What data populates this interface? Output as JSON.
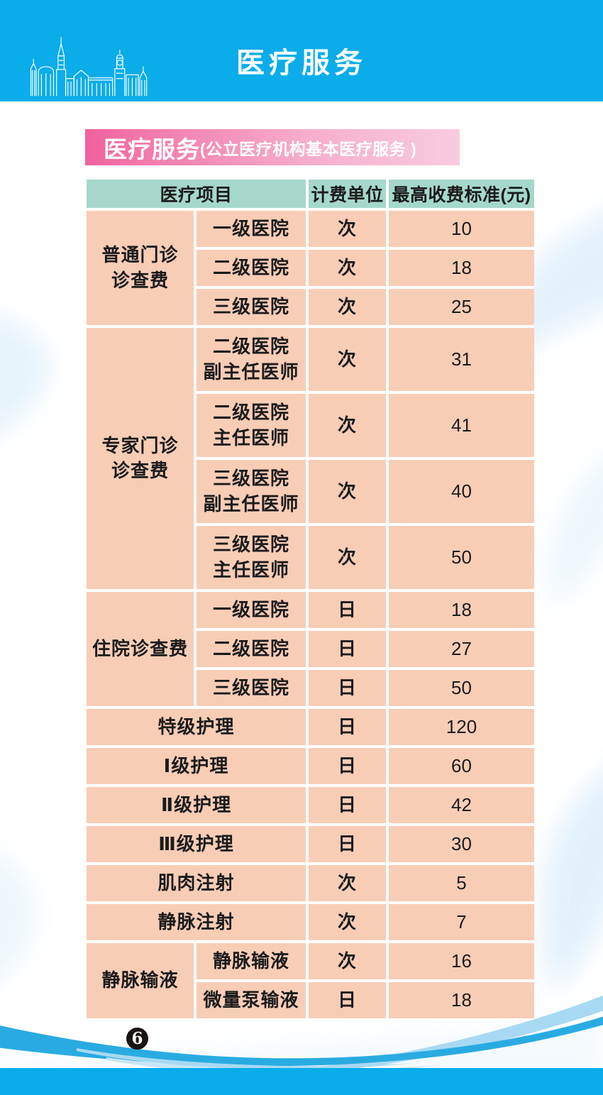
{
  "page": {
    "top_banner_title": "医疗服务",
    "page_number": "6"
  },
  "section_banner": {
    "title": "医疗服务",
    "subtitle": "(公立医疗机构基本医疗服务 )"
  },
  "colors": {
    "top_bar": "#0AACE9",
    "table_header_bg": "#A5D8CA",
    "table_cell_bg": "#F8CDB6",
    "banner_pink_start": "#F0619D",
    "banner_pink_end": "#F9CCE0",
    "wave_main": "#29ABE2",
    "wave_light": "#A8D9F2",
    "page_number_bg": "#181312"
  },
  "table": {
    "header": [
      {
        "text": "医疗项目",
        "colspan": 2
      },
      {
        "text": "计费单位",
        "colspan": 1
      },
      {
        "text": "最高收费标准(元)",
        "colspan": 1
      }
    ],
    "rows": [
      {
        "tall": false,
        "cells": [
          {
            "text": "普通门诊\n诊查费",
            "rowspan": 3,
            "group": true
          },
          {
            "text": "一级医院"
          },
          {
            "text": "次"
          },
          {
            "text": "10"
          }
        ]
      },
      {
        "tall": false,
        "cells": [
          {
            "text": "二级医院"
          },
          {
            "text": "次"
          },
          {
            "text": "18"
          }
        ]
      },
      {
        "tall": false,
        "cells": [
          {
            "text": "三级医院"
          },
          {
            "text": "次"
          },
          {
            "text": "25"
          }
        ]
      },
      {
        "tall": true,
        "cells": [
          {
            "text": "专家门诊\n诊查费",
            "rowspan": 4,
            "group": true
          },
          {
            "text": "二级医院\n副主任医师"
          },
          {
            "text": "次"
          },
          {
            "text": "31"
          }
        ]
      },
      {
        "tall": true,
        "cells": [
          {
            "text": "二级医院\n主任医师"
          },
          {
            "text": "次"
          },
          {
            "text": "41"
          }
        ]
      },
      {
        "tall": true,
        "cells": [
          {
            "text": "三级医院\n副主任医师"
          },
          {
            "text": "次"
          },
          {
            "text": "40"
          }
        ]
      },
      {
        "tall": true,
        "cells": [
          {
            "text": "三级医院\n主任医师"
          },
          {
            "text": "次"
          },
          {
            "text": "50"
          }
        ]
      },
      {
        "tall": false,
        "cells": [
          {
            "text": "住院诊查费",
            "rowspan": 3,
            "group": true
          },
          {
            "text": "一级医院"
          },
          {
            "text": "日"
          },
          {
            "text": "18"
          }
        ]
      },
      {
        "tall": false,
        "cells": [
          {
            "text": "二级医院"
          },
          {
            "text": "日"
          },
          {
            "text": "27"
          }
        ]
      },
      {
        "tall": false,
        "cells": [
          {
            "text": "三级医院"
          },
          {
            "text": "日"
          },
          {
            "text": "50"
          }
        ]
      },
      {
        "tall": false,
        "cells": [
          {
            "text": "特级护理",
            "colspan": 2
          },
          {
            "text": "日"
          },
          {
            "text": "120"
          }
        ]
      },
      {
        "tall": false,
        "cells": [
          {
            "text": "Ⅰ级护理",
            "colspan": 2
          },
          {
            "text": "日"
          },
          {
            "text": "60"
          }
        ]
      },
      {
        "tall": false,
        "cells": [
          {
            "text": "Ⅱ级护理",
            "colspan": 2
          },
          {
            "text": "日"
          },
          {
            "text": "42"
          }
        ]
      },
      {
        "tall": false,
        "cells": [
          {
            "text": "Ⅲ级护理",
            "colspan": 2
          },
          {
            "text": "日"
          },
          {
            "text": "30"
          }
        ]
      },
      {
        "tall": false,
        "cells": [
          {
            "text": "肌肉注射",
            "colspan": 2
          },
          {
            "text": "次"
          },
          {
            "text": "5"
          }
        ]
      },
      {
        "tall": false,
        "cells": [
          {
            "text": "静脉注射",
            "colspan": 2
          },
          {
            "text": "次"
          },
          {
            "text": "7"
          }
        ]
      },
      {
        "tall": false,
        "cells": [
          {
            "text": "静脉输液",
            "rowspan": 2,
            "group": true
          },
          {
            "text": "静脉输液"
          },
          {
            "text": "次"
          },
          {
            "text": "16"
          }
        ]
      },
      {
        "tall": false,
        "cells": [
          {
            "text": "微量泵输液"
          },
          {
            "text": "日"
          },
          {
            "text": "18"
          }
        ]
      }
    ]
  }
}
